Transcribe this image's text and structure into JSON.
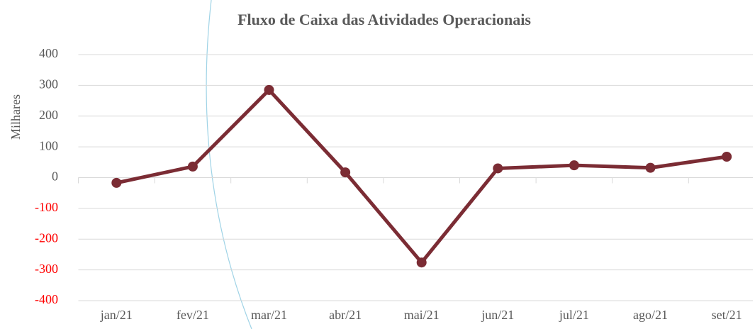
{
  "chart_data": {
    "type": "line",
    "title": "Fluxo de Caixa das Atividades Operacionais",
    "y_label": "Milhares",
    "categories": [
      "jan/21",
      "fev/21",
      "mar/21",
      "abr/21",
      "mai/21",
      "jun/21",
      "jul/21",
      "ago/21",
      "set/21"
    ],
    "series": [
      {
        "name": "Fluxo de Caixa",
        "color": "#7b2c34",
        "values": [
          -17,
          36,
          285,
          17,
          -276,
          30,
          40,
          32,
          68
        ]
      }
    ],
    "ylim": [
      -400,
      400
    ],
    "yticks": [
      -400,
      -300,
      -200,
      -100,
      0,
      100,
      200,
      300,
      400
    ],
    "grid": true,
    "negative_tick_color": "#ff0000",
    "legend": false
  }
}
